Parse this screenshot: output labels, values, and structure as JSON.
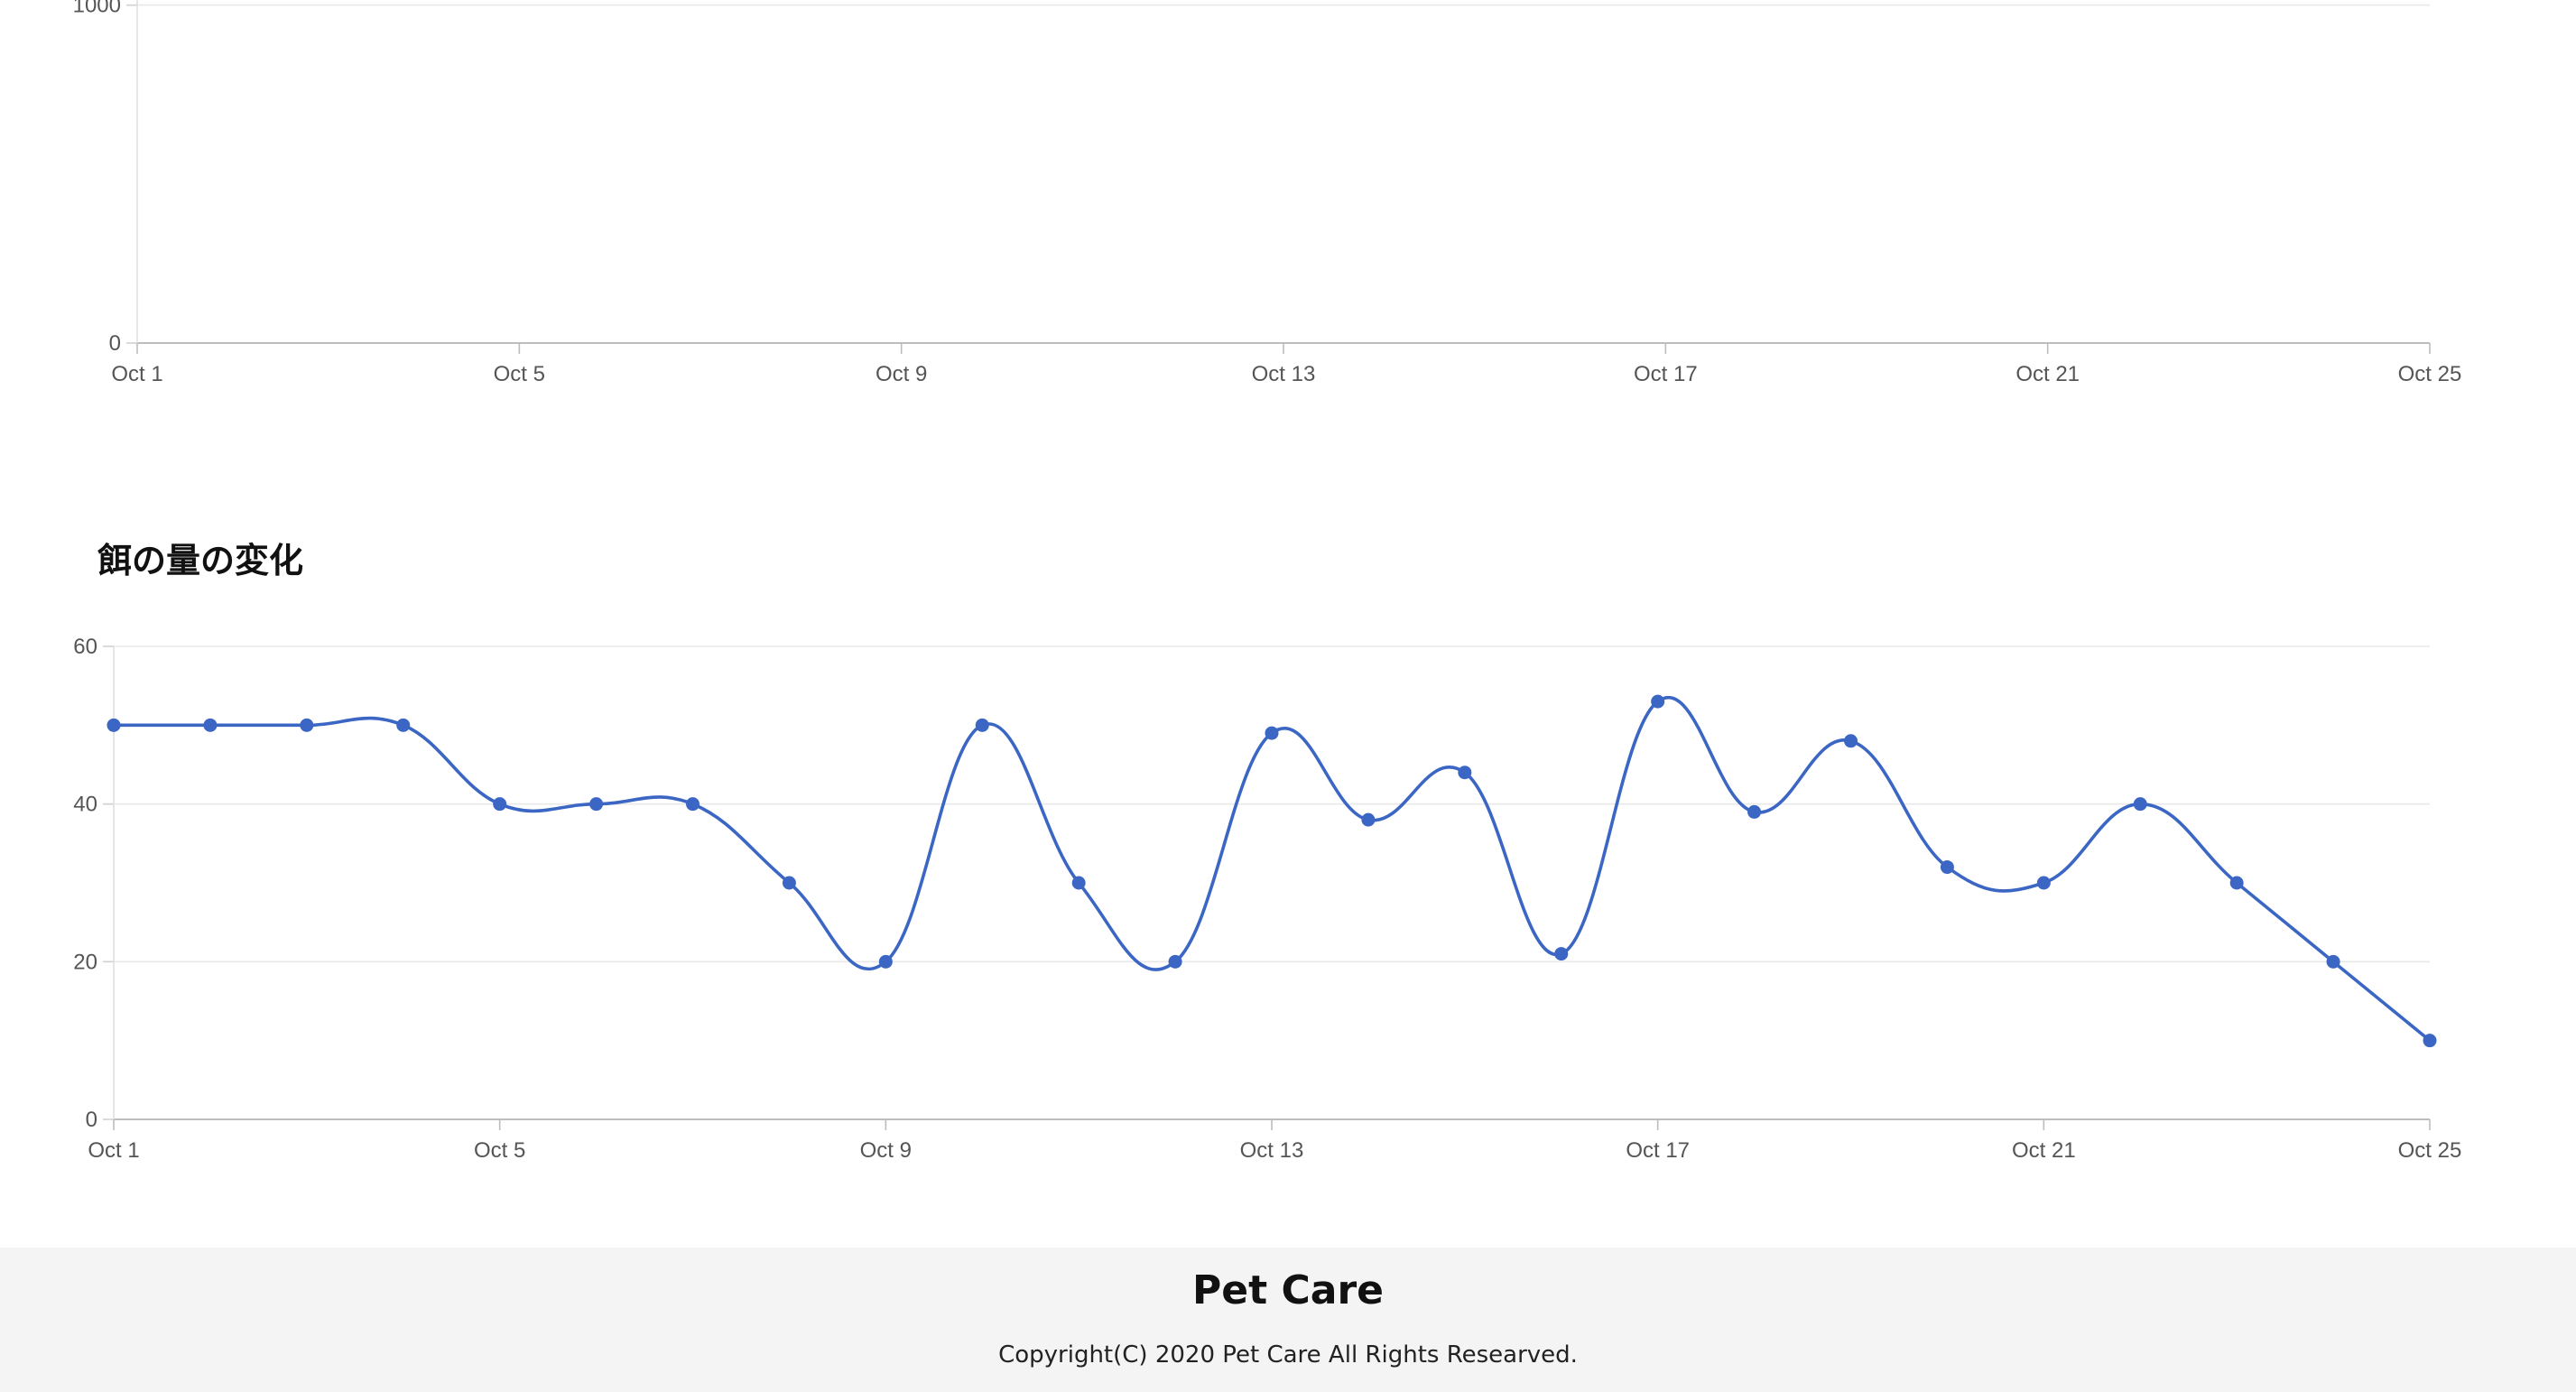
{
  "chart_data": [
    {
      "type": "line",
      "title": "",
      "xlabel": "",
      "ylabel": "",
      "x_ticks": [
        "Oct 1",
        "Oct 5",
        "Oct 9",
        "Oct 13",
        "Oct 17",
        "Oct 21",
        "Oct 25"
      ],
      "y_ticks": [
        0,
        1000
      ],
      "x_range": [
        "Oct 1",
        "Oct 25"
      ],
      "ylim": [
        0,
        1400
      ],
      "grid": true,
      "series": []
    },
    {
      "type": "line",
      "title": "餌の量の変化",
      "xlabel": "",
      "ylabel": "",
      "x_ticks": [
        "Oct 1",
        "Oct 5",
        "Oct 9",
        "Oct 13",
        "Oct 17",
        "Oct 21",
        "Oct 25"
      ],
      "y_ticks": [
        0,
        20,
        40,
        60
      ],
      "x_range": [
        "Oct 1",
        "Oct 25"
      ],
      "ylim": [
        0,
        60
      ],
      "grid": true,
      "color": "#3b66c4",
      "series": [
        {
          "x": [
            "Oct 1",
            "Oct 2",
            "Oct 3",
            "Oct 4",
            "Oct 5",
            "Oct 6",
            "Oct 7",
            "Oct 8",
            "Oct 9",
            "Oct 10",
            "Oct 11",
            "Oct 12",
            "Oct 13",
            "Oct 14",
            "Oct 15",
            "Oct 16",
            "Oct 17",
            "Oct 18",
            "Oct 19",
            "Oct 20",
            "Oct 21",
            "Oct 22",
            "Oct 23",
            "Oct 24",
            "Oct 25"
          ],
          "values": [
            50,
            50,
            50,
            50,
            40,
            40,
            40,
            30,
            20,
            50,
            30,
            20,
            49,
            38,
            44,
            21,
            53,
            39,
            48,
            32,
            30,
            40,
            30,
            20,
            10
          ]
        }
      ]
    }
  ],
  "footer": {
    "brand": "Pet Care",
    "copyright": "Copyright(C) 2020 Pet Care All Rights Researved."
  }
}
